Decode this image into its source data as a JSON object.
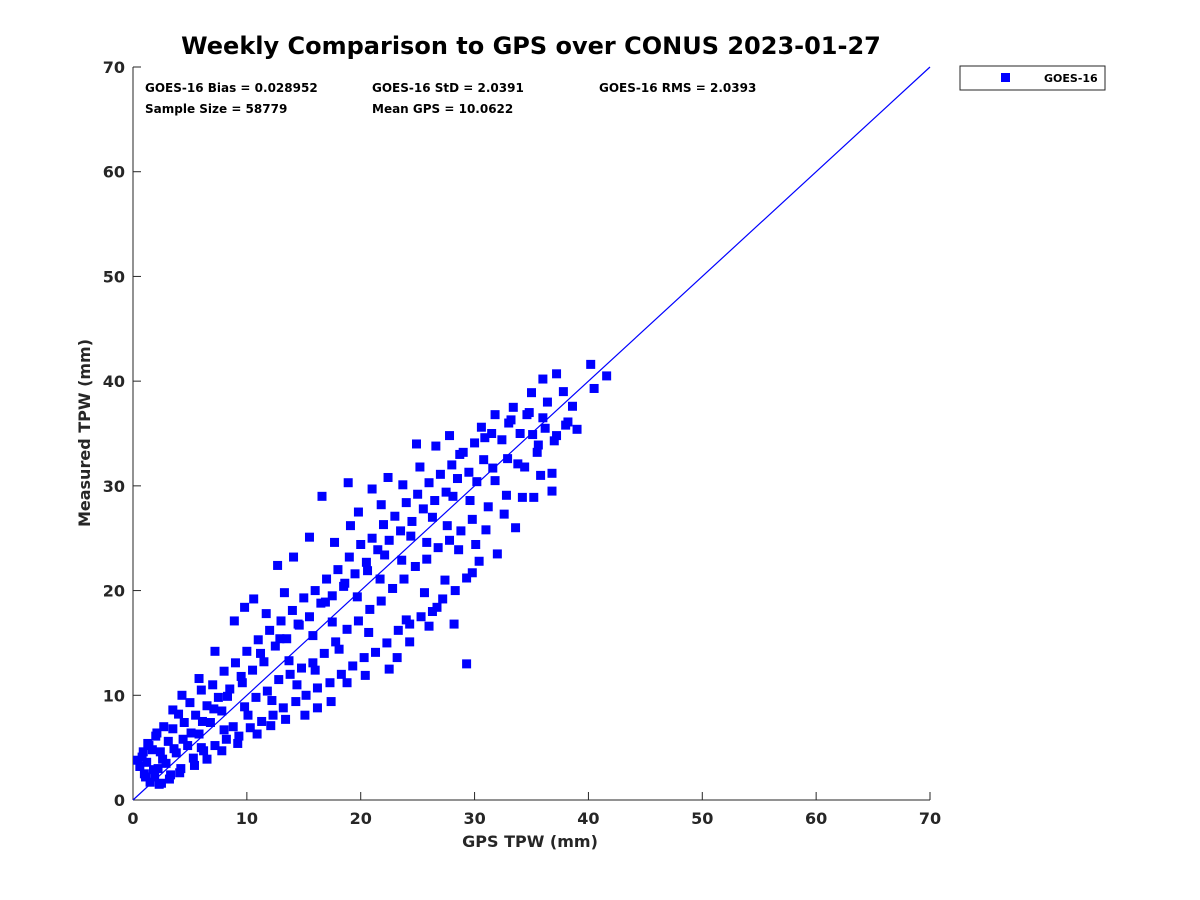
{
  "chart_data": {
    "type": "scatter",
    "title": "Weekly Comparison to GPS over CONUS 2023-01-27",
    "xlabel": "GPS TPW (mm)",
    "ylabel": "Measured TPW (mm)",
    "xlim": [
      0,
      70
    ],
    "ylim": [
      0,
      70
    ],
    "x_ticks": [
      0,
      10,
      20,
      30,
      40,
      50,
      60,
      70
    ],
    "y_ticks": [
      0,
      10,
      20,
      30,
      40,
      50,
      60,
      70
    ],
    "grid": false,
    "legend": {
      "placement": "outside-top-right",
      "entries": [
        "GOES-16"
      ]
    },
    "colors": {
      "series": "#0000ff",
      "axis": "#262626",
      "background": "#ffffff"
    },
    "annotations": [
      {
        "id": "bias",
        "text": "GOES-16 Bias = 0.028952"
      },
      {
        "id": "std",
        "text": "GOES-16 StD = 2.0391"
      },
      {
        "id": "rms",
        "text": "GOES-16 RMS = 2.0393"
      },
      {
        "id": "sample",
        "text": "Sample Size = 58779"
      },
      {
        "id": "mean",
        "text": "Mean GPS = 10.0622"
      }
    ],
    "reference_line": {
      "type": "one-to-one",
      "x": [
        0,
        70
      ],
      "y": [
        0,
        70
      ]
    },
    "series": [
      {
        "name": "GOES-16",
        "marker": "square",
        "points": [
          [
            0.4,
            3.8
          ],
          [
            0.6,
            3.2
          ],
          [
            0.8,
            4.1
          ],
          [
            1.0,
            2.5
          ],
          [
            1.2,
            3.6
          ],
          [
            1.4,
            5.2
          ],
          [
            1.5,
            1.7
          ],
          [
            1.7,
            4.8
          ],
          [
            1.9,
            2.2
          ],
          [
            2.0,
            6.1
          ],
          [
            2.2,
            3.0
          ],
          [
            2.4,
            4.6
          ],
          [
            2.5,
            1.6
          ],
          [
            2.7,
            7.0
          ],
          [
            2.9,
            3.5
          ],
          [
            3.1,
            5.6
          ],
          [
            3.3,
            2.4
          ],
          [
            3.5,
            6.8
          ],
          [
            3.8,
            4.5
          ],
          [
            4.0,
            8.2
          ],
          [
            4.2,
            3.0
          ],
          [
            4.5,
            7.4
          ],
          [
            4.8,
            5.2
          ],
          [
            5.0,
            9.3
          ],
          [
            5.3,
            4.0
          ],
          [
            5.5,
            8.1
          ],
          [
            5.8,
            6.3
          ],
          [
            6.0,
            10.5
          ],
          [
            6.2,
            4.7
          ],
          [
            6.5,
            9.0
          ],
          [
            6.8,
            7.4
          ],
          [
            7.0,
            11.0
          ],
          [
            7.2,
            5.2
          ],
          [
            7.5,
            9.8
          ],
          [
            7.8,
            8.5
          ],
          [
            8.0,
            12.3
          ],
          [
            8.2,
            5.8
          ],
          [
            8.5,
            10.6
          ],
          [
            8.8,
            7.0
          ],
          [
            9.0,
            13.1
          ],
          [
            9.3,
            6.1
          ],
          [
            9.5,
            11.8
          ],
          [
            9.8,
            8.9
          ],
          [
            10.0,
            14.2
          ],
          [
            10.3,
            6.9
          ],
          [
            10.5,
            12.4
          ],
          [
            10.8,
            9.8
          ],
          [
            11.0,
            15.3
          ],
          [
            11.3,
            7.5
          ],
          [
            11.5,
            13.2
          ],
          [
            11.8,
            10.4
          ],
          [
            12.0,
            16.2
          ],
          [
            12.3,
            8.1
          ],
          [
            12.5,
            14.7
          ],
          [
            12.8,
            11.5
          ],
          [
            13.0,
            17.1
          ],
          [
            13.2,
            8.8
          ],
          [
            13.5,
            15.4
          ],
          [
            13.8,
            12.0
          ],
          [
            14.0,
            18.1
          ],
          [
            14.3,
            9.4
          ],
          [
            14.5,
            16.8
          ],
          [
            14.8,
            12.6
          ],
          [
            15.0,
            19.3
          ],
          [
            15.2,
            10.0
          ],
          [
            15.5,
            17.5
          ],
          [
            15.8,
            13.1
          ],
          [
            16.0,
            20.0
          ],
          [
            16.2,
            10.7
          ],
          [
            16.5,
            18.8
          ],
          [
            16.8,
            14.0
          ],
          [
            17.0,
            21.1
          ],
          [
            17.3,
            11.2
          ],
          [
            17.5,
            19.5
          ],
          [
            17.8,
            15.1
          ],
          [
            18.0,
            22.0
          ],
          [
            18.3,
            12.0
          ],
          [
            18.5,
            20.4
          ],
          [
            18.8,
            16.3
          ],
          [
            19.0,
            23.2
          ],
          [
            19.3,
            12.8
          ],
          [
            19.5,
            21.6
          ],
          [
            19.8,
            17.1
          ],
          [
            20.0,
            24.4
          ],
          [
            20.3,
            13.6
          ],
          [
            20.5,
            22.7
          ],
          [
            20.8,
            18.2
          ],
          [
            21.0,
            25.0
          ],
          [
            21.3,
            14.1
          ],
          [
            21.5,
            23.9
          ],
          [
            21.8,
            19.0
          ],
          [
            22.0,
            26.3
          ],
          [
            22.3,
            15.0
          ],
          [
            22.5,
            24.8
          ],
          [
            22.8,
            20.2
          ],
          [
            23.0,
            27.1
          ],
          [
            23.3,
            16.2
          ],
          [
            23.5,
            25.7
          ],
          [
            23.8,
            21.1
          ],
          [
            24.0,
            28.4
          ],
          [
            24.3,
            16.8
          ],
          [
            24.5,
            26.6
          ],
          [
            24.8,
            22.3
          ],
          [
            25.0,
            29.2
          ],
          [
            25.3,
            17.5
          ],
          [
            25.5,
            27.8
          ],
          [
            25.8,
            23.0
          ],
          [
            26.0,
            30.3
          ],
          [
            26.3,
            18.0
          ],
          [
            26.5,
            28.6
          ],
          [
            26.8,
            24.1
          ],
          [
            27.0,
            31.1
          ],
          [
            27.2,
            19.2
          ],
          [
            27.5,
            29.4
          ],
          [
            27.8,
            24.8
          ],
          [
            28.0,
            32.0
          ],
          [
            28.3,
            20.0
          ],
          [
            28.5,
            30.7
          ],
          [
            28.8,
            25.7
          ],
          [
            29.0,
            33.2
          ],
          [
            29.3,
            21.2
          ],
          [
            29.5,
            31.3
          ],
          [
            29.8,
            26.8
          ],
          [
            30.0,
            34.1
          ],
          [
            30.4,
            22.8
          ],
          [
            30.8,
            32.5
          ],
          [
            31.2,
            28.0
          ],
          [
            31.5,
            35.0
          ],
          [
            32.0,
            23.5
          ],
          [
            32.4,
            34.4
          ],
          [
            32.8,
            29.1
          ],
          [
            33.2,
            36.3
          ],
          [
            33.6,
            26.0
          ],
          [
            34.0,
            35.0
          ],
          [
            34.4,
            31.8
          ],
          [
            34.8,
            37.0
          ],
          [
            35.2,
            28.9
          ],
          [
            35.6,
            33.9
          ],
          [
            36.0,
            36.5
          ],
          [
            36.4,
            38.0
          ],
          [
            36.8,
            31.2
          ],
          [
            37.2,
            34.8
          ],
          [
            37.8,
            39.0
          ],
          [
            38.2,
            36.1
          ],
          [
            38.6,
            37.6
          ],
          [
            39.0,
            35.4
          ],
          [
            40.2,
            41.6
          ],
          [
            40.5,
            39.3
          ],
          [
            41.6,
            40.5
          ],
          [
            37.2,
            40.7
          ],
          [
            36.0,
            40.2
          ],
          [
            35.0,
            38.9
          ],
          [
            33.4,
            37.5
          ],
          [
            31.8,
            36.8
          ],
          [
            29.3,
            13.0
          ],
          [
            28.2,
            16.8
          ],
          [
            26.0,
            16.6
          ],
          [
            24.3,
            15.1
          ],
          [
            23.2,
            13.6
          ],
          [
            22.5,
            12.5
          ],
          [
            20.4,
            11.9
          ],
          [
            18.8,
            11.2
          ],
          [
            17.4,
            9.4
          ],
          [
            16.2,
            8.8
          ],
          [
            15.1,
            8.1
          ],
          [
            13.4,
            7.7
          ],
          [
            12.1,
            7.1
          ],
          [
            10.9,
            6.3
          ],
          [
            9.2,
            5.4
          ],
          [
            7.8,
            4.7
          ],
          [
            6.5,
            3.9
          ],
          [
            5.4,
            3.3
          ],
          [
            4.1,
            2.6
          ],
          [
            3.2,
            2.0
          ],
          [
            2.3,
            1.5
          ],
          [
            14.1,
            23.2
          ],
          [
            12.7,
            22.4
          ],
          [
            15.5,
            25.1
          ],
          [
            18.9,
            30.3
          ],
          [
            21.0,
            29.7
          ],
          [
            24.9,
            34.0
          ],
          [
            27.8,
            34.8
          ],
          [
            30.6,
            35.6
          ],
          [
            16.6,
            29.0
          ],
          [
            19.8,
            27.5
          ],
          [
            22.4,
            30.8
          ],
          [
            26.6,
            33.8
          ],
          [
            8.9,
            17.1
          ],
          [
            10.6,
            19.2
          ],
          [
            11.7,
            17.8
          ],
          [
            13.3,
            19.8
          ],
          [
            9.8,
            18.4
          ],
          [
            7.2,
            14.2
          ],
          [
            5.8,
            11.6
          ],
          [
            4.3,
            10.0
          ],
          [
            3.5,
            8.6
          ],
          [
            2.1,
            6.4
          ],
          [
            1.3,
            5.4
          ],
          [
            0.9,
            4.6
          ],
          [
            25.6,
            19.8
          ],
          [
            27.4,
            21.0
          ],
          [
            28.6,
            23.9
          ],
          [
            30.1,
            24.4
          ],
          [
            31.0,
            25.8
          ],
          [
            32.6,
            27.3
          ],
          [
            34.2,
            28.9
          ],
          [
            35.8,
            31.0
          ],
          [
            36.8,
            29.5
          ],
          [
            20.7,
            16.0
          ],
          [
            18.1,
            14.4
          ],
          [
            16.0,
            12.4
          ],
          [
            14.4,
            11.0
          ],
          [
            12.2,
            9.5
          ],
          [
            10.1,
            8.1
          ],
          [
            8.0,
            6.7
          ],
          [
            6.0,
            5.0
          ],
          [
            24.0,
            17.2
          ],
          [
            26.7,
            18.4
          ],
          [
            29.8,
            21.7
          ],
          [
            17.7,
            24.6
          ],
          [
            19.1,
            26.2
          ],
          [
            21.8,
            28.2
          ],
          [
            23.7,
            30.1
          ],
          [
            25.2,
            31.8
          ],
          [
            28.7,
            33.0
          ],
          [
            30.9,
            34.6
          ],
          [
            33.0,
            36.0
          ],
          [
            34.6,
            36.8
          ],
          [
            11.2,
            14.0
          ],
          [
            12.9,
            15.4
          ],
          [
            14.6,
            16.7
          ],
          [
            16.9,
            18.9
          ],
          [
            18.6,
            20.7
          ],
          [
            20.6,
            21.9
          ],
          [
            22.1,
            23.4
          ],
          [
            24.4,
            25.2
          ],
          [
            26.3,
            27.0
          ],
          [
            28.1,
            29.0
          ],
          [
            30.2,
            30.4
          ],
          [
            31.6,
            31.7
          ],
          [
            32.9,
            32.6
          ],
          [
            35.1,
            34.9
          ],
          [
            36.2,
            35.5
          ],
          [
            9.6,
            11.2
          ],
          [
            8.3,
            9.9
          ],
          [
            7.1,
            8.7
          ],
          [
            6.1,
            7.5
          ],
          [
            5.1,
            6.4
          ],
          [
            4.4,
            5.8
          ],
          [
            3.6,
            4.9
          ],
          [
            2.6,
            3.9
          ],
          [
            1.8,
            2.9
          ],
          [
            1.1,
            2.2
          ],
          [
            13.7,
            13.3
          ],
          [
            15.8,
            15.7
          ],
          [
            17.5,
            17.0
          ],
          [
            19.7,
            19.4
          ],
          [
            21.7,
            21.1
          ],
          [
            23.6,
            22.9
          ],
          [
            25.8,
            24.6
          ],
          [
            27.6,
            26.2
          ],
          [
            29.6,
            28.6
          ],
          [
            31.8,
            30.5
          ],
          [
            33.8,
            32.1
          ],
          [
            35.5,
            33.2
          ],
          [
            37.0,
            34.3
          ],
          [
            38.0,
            35.8
          ]
        ]
      }
    ]
  }
}
